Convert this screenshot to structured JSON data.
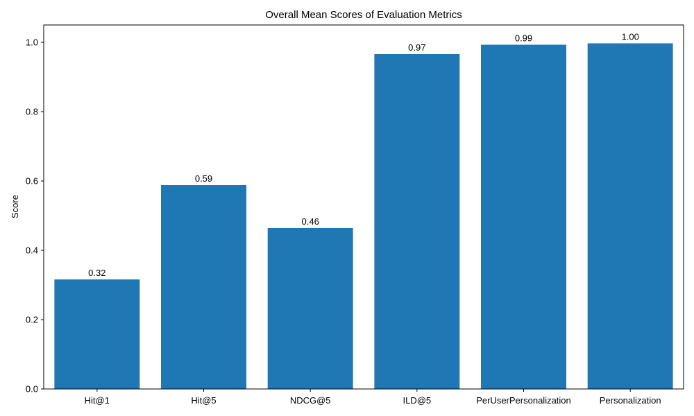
{
  "chart_data": {
    "type": "bar",
    "title": "Overall Mean Scores of Evaluation Metrics",
    "xlabel": "",
    "ylabel": "Score",
    "categories": [
      "Hit@1",
      "Hit@5",
      "NDCG@5",
      "ILD@5",
      "PerUserPersonalization",
      "Personalization"
    ],
    "values": [
      0.316,
      0.588,
      0.464,
      0.966,
      0.993,
      0.997
    ],
    "data_labels": [
      "0.32",
      "0.59",
      "0.46",
      "0.97",
      "0.99",
      "1.00"
    ],
    "ylim": [
      0,
      1.05
    ],
    "yticks": [
      0.0,
      0.2,
      0.4,
      0.6,
      0.8,
      1.0
    ],
    "ytick_labels": [
      "0.0",
      "0.2",
      "0.4",
      "0.6",
      "0.8",
      "1.0"
    ],
    "grid": false,
    "bar_color": "#1f77b4"
  }
}
